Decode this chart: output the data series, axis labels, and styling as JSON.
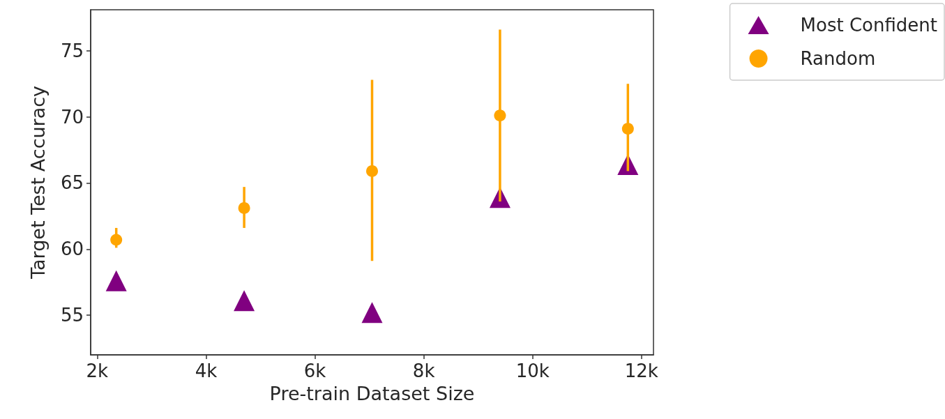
{
  "chart_data": {
    "type": "scatter",
    "xlabel": "Pre-train Dataset Size",
    "ylabel": "Target Test Accuracy",
    "xlim": [
      1880,
      12220
    ],
    "xticks": [
      {
        "value": 2000,
        "label": "2k"
      },
      {
        "value": 4000,
        "label": "4k"
      },
      {
        "value": 6000,
        "label": "6k"
      },
      {
        "value": 8000,
        "label": "8k"
      },
      {
        "value": 10000,
        "label": "10k"
      },
      {
        "value": 12000,
        "label": "12k"
      }
    ],
    "ylim": [
      52,
      78.1
    ],
    "yticks": [
      55,
      60,
      65,
      70,
      75
    ],
    "grid": false,
    "legend": "top right",
    "series": [
      {
        "name": "Most Confident",
        "color": "#800080",
        "marker": "triangle",
        "x": [
          2350,
          4700,
          7050,
          9400,
          11750
        ],
        "values": [
          57.6,
          56.1,
          55.2,
          63.9,
          66.4
        ]
      },
      {
        "name": "Random",
        "color": "#ffa500",
        "marker": "circle",
        "x": [
          2350,
          4700,
          7050,
          9400,
          11750
        ],
        "values": [
          60.7,
          63.1,
          65.9,
          70.1,
          69.1
        ],
        "errors": [
          [
            60.1,
            61.6
          ],
          [
            61.6,
            64.7
          ],
          [
            59.1,
            72.8
          ],
          [
            63.6,
            76.6
          ],
          [
            65.9,
            72.5
          ]
        ]
      }
    ]
  }
}
